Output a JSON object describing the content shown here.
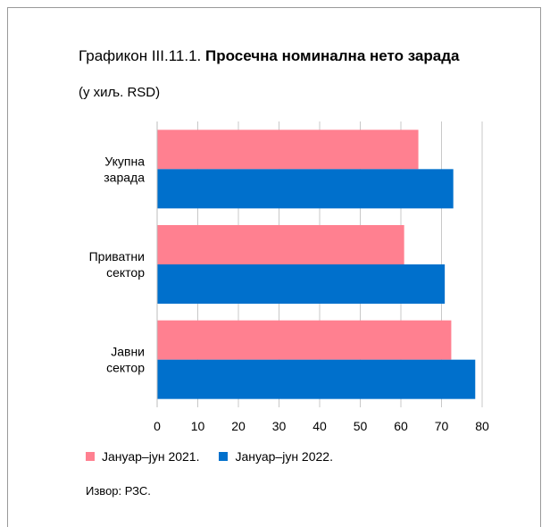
{
  "title": {
    "prefix": "Графикон III.11.1.",
    "bold": "Просечна номинална нето зарада",
    "subtitle": "(у хиљ. RSD)"
  },
  "source": "Извор: РЗС.",
  "chart_data": {
    "type": "bar",
    "orientation": "horizontal",
    "categories": [
      [
        "Укупна",
        "зарада"
      ],
      [
        "Приватни",
        "сектор"
      ],
      [
        "Јавни",
        "сектор"
      ]
    ],
    "series": [
      {
        "name": "Јануар–јун 2021.",
        "color": "#ff8090",
        "values": [
          64.3,
          60.8,
          72.4
        ]
      },
      {
        "name": "Јануар–јун 2022.",
        "color": "#0070cc",
        "values": [
          72.9,
          70.8,
          78.3
        ]
      }
    ],
    "xlim": [
      0,
      80
    ],
    "xticks": [
      "0",
      "10",
      "20",
      "30",
      "40",
      "50",
      "60",
      "70",
      "80"
    ],
    "grid": true,
    "legend_position": "bottom"
  }
}
